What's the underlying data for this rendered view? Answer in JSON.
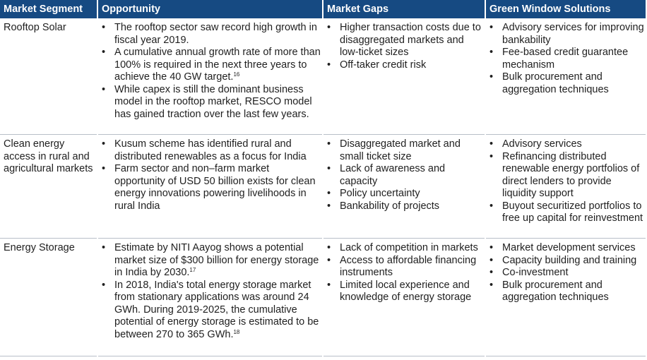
{
  "headers": {
    "segment": "Market Segment",
    "opportunity": "Opportunity",
    "gaps": "Market Gaps",
    "solutions": "Green Window Solutions"
  },
  "rows": [
    {
      "segment": "Rooftop Solar",
      "opportunity": [
        {
          "text": "The rooftop sector saw record high growth in fiscal year 2019.",
          "sup": ""
        },
        {
          "text": "A cumulative annual growth rate of more than 100% is required in the next three years to achieve the 40 GW target.",
          "sup": "16"
        },
        {
          "text": "While capex is still the dominant business model in the rooftop market, RESCO model has gained traction over the last few years.",
          "sup": ""
        }
      ],
      "gaps": [
        "Higher transaction costs due to disaggregated markets and low-ticket sizes",
        "Off-taker credit risk"
      ],
      "solutions": [
        "Advisory services for improving bankability",
        "Fee-based credit guarantee mechanism",
        "Bulk procurement and aggregation techniques"
      ]
    },
    {
      "segment": "Clean energy access in rural and agricultural markets",
      "opportunity": [
        {
          "text": "Kusum scheme has identified rural and distributed renewables as a focus for India",
          "sup": ""
        },
        {
          "text": "Farm sector and non–farm market opportunity of USD 50 billion exists for clean energy innovations powering livelihoods in rural India",
          "sup": ""
        }
      ],
      "gaps": [
        "Disaggregated market and small ticket size",
        "Lack of awareness and capacity",
        "Policy uncertainty",
        "Bankability of projects"
      ],
      "solutions": [
        "Advisory services",
        "Refinancing distributed renewable energy portfolios of direct lenders to provide liquidity support",
        "Buyout securitized portfolios to free up capital for reinvestment"
      ]
    },
    {
      "segment": "Energy Storage",
      "opportunity": [
        {
          "text": "Estimate by NITI Aayog shows a potential market size of $300 billion for energy storage in India by 2030.",
          "sup": "17"
        },
        {
          "text": "In 2018, India's total energy storage market from stationary applications was around 24 GWh. During 2019-2025, the cumulative potential of energy storage is estimated to be between 270 to 365 GWh.",
          "sup": "18"
        }
      ],
      "gaps": [
        "Lack of competition in markets",
        "Access to affordable financing instruments",
        "Limited local experience and knowledge of energy storage"
      ],
      "solutions": [
        "Market development services",
        "Capacity building and training",
        "Co-investment",
        "Bulk procurement and aggregation techniques"
      ]
    }
  ]
}
